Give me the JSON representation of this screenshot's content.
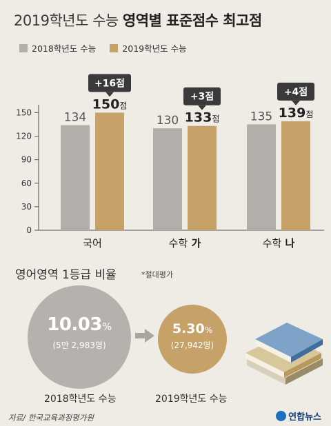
{
  "title": {
    "light": "2019학년도 수능",
    "bold": "영역별 표준점수 최고점"
  },
  "legend": [
    {
      "label": "2018학년도 수능",
      "color": "#b2aeaa"
    },
    {
      "label": "2019학년도 수능",
      "color": "#c6a168"
    }
  ],
  "chart_data": {
    "type": "bar",
    "categories": [
      "국어",
      "수학 가",
      "수학 나"
    ],
    "series": [
      {
        "name": "2018학년도 수능",
        "values": [
          134,
          130,
          135
        ]
      },
      {
        "name": "2019학년도 수능",
        "values": [
          150,
          133,
          139
        ]
      }
    ],
    "data_labels": [
      "134",
      "150점",
      "130",
      "133점",
      "135",
      "139점"
    ],
    "callouts": [
      "+16점",
      "+3점",
      "+4점"
    ],
    "yticks": [
      0,
      30,
      60,
      90,
      120,
      150
    ],
    "ylim": [
      0,
      160
    ],
    "grid": false,
    "legend_position": "top-left"
  },
  "english": {
    "title": "영어영역 1등급 비율",
    "note": "*절대평가",
    "y2018": {
      "pct": "10.03",
      "unit": "%",
      "count": "(5만 2,983명)",
      "label": "2018학년도 수능"
    },
    "y2019": {
      "pct": "5.30",
      "unit": "%",
      "count": "(27,942명)",
      "label": "2019학년도 수능"
    }
  },
  "source": "자료/ 한국교육과정평가원",
  "agency": "연합뉴스"
}
